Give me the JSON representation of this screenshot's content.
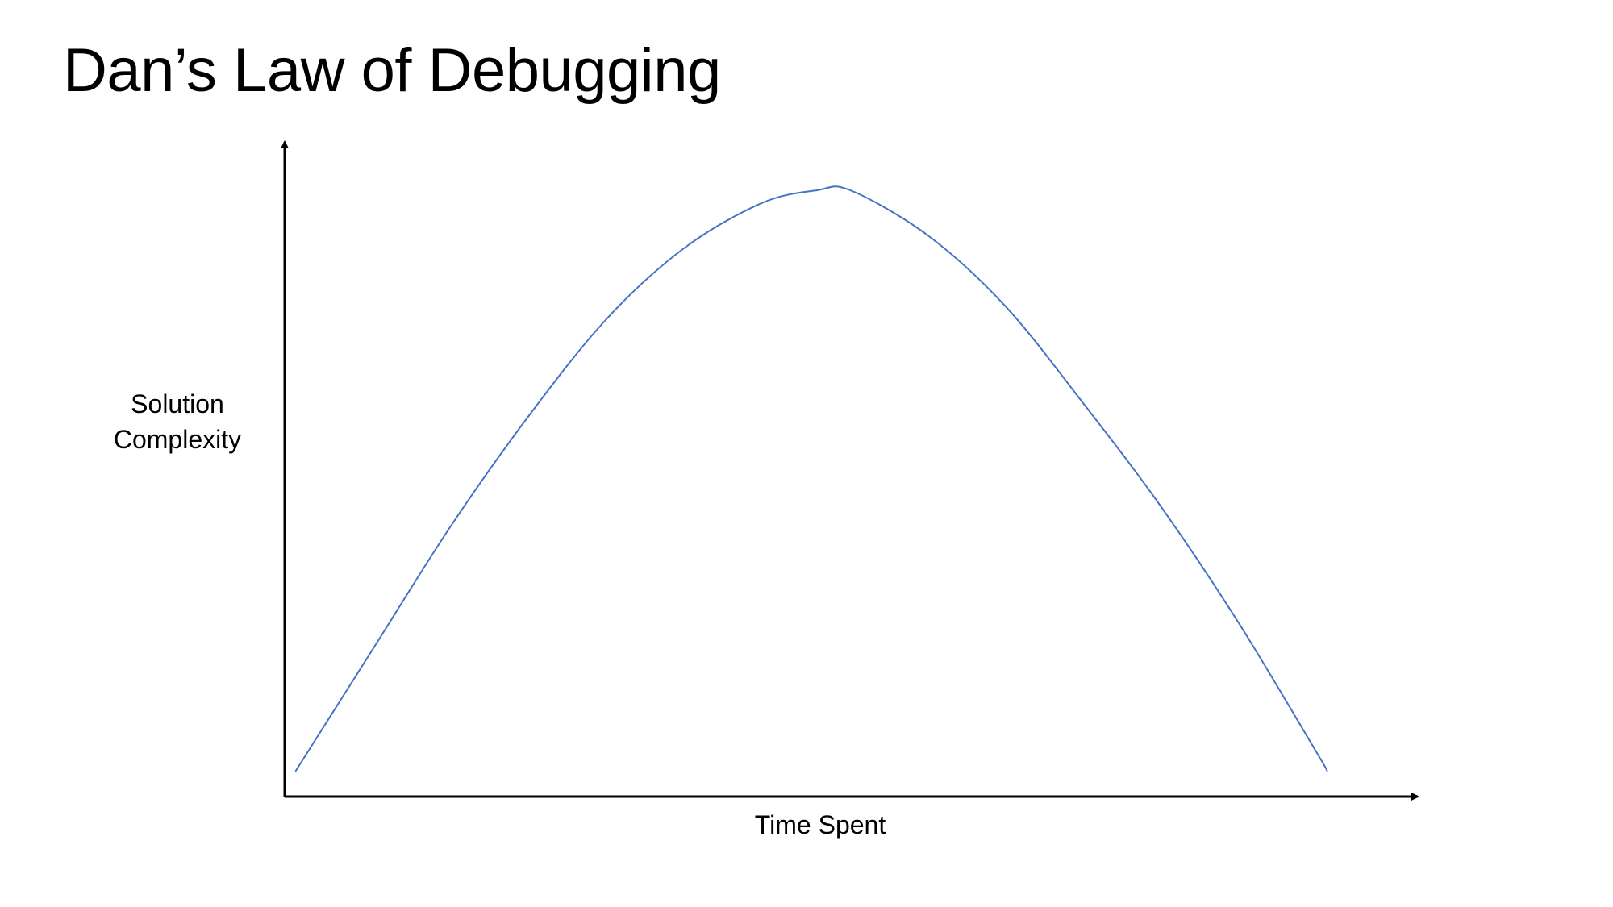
{
  "slide": {
    "title": "Dan’s Law of Debugging"
  },
  "chart_data": {
    "type": "line",
    "title": "Dan’s Law of Debugging",
    "xlabel": "Time Spent",
    "ylabel": [
      "Solution",
      "Complexity"
    ],
    "xlim": [
      0,
      10
    ],
    "ylim": [
      0,
      10
    ],
    "grid": false,
    "legend": "none",
    "ticks": "none",
    "series": [
      {
        "color": "#4472C4",
        "x": [
          0.1,
          0.8,
          1.5,
          2.2,
          2.9,
          3.6,
          4.3,
          4.8,
          5.1,
          5.8,
          6.5,
          7.2,
          7.9,
          8.6,
          9.3,
          9.4
        ],
        "y": [
          0.4,
          2.3,
          4.2,
          5.9,
          7.4,
          8.5,
          9.2,
          9.4,
          9.4,
          8.7,
          7.6,
          6.1,
          4.5,
          2.7,
          0.7,
          0.4
        ]
      }
    ],
    "axis_color": "#000000"
  }
}
